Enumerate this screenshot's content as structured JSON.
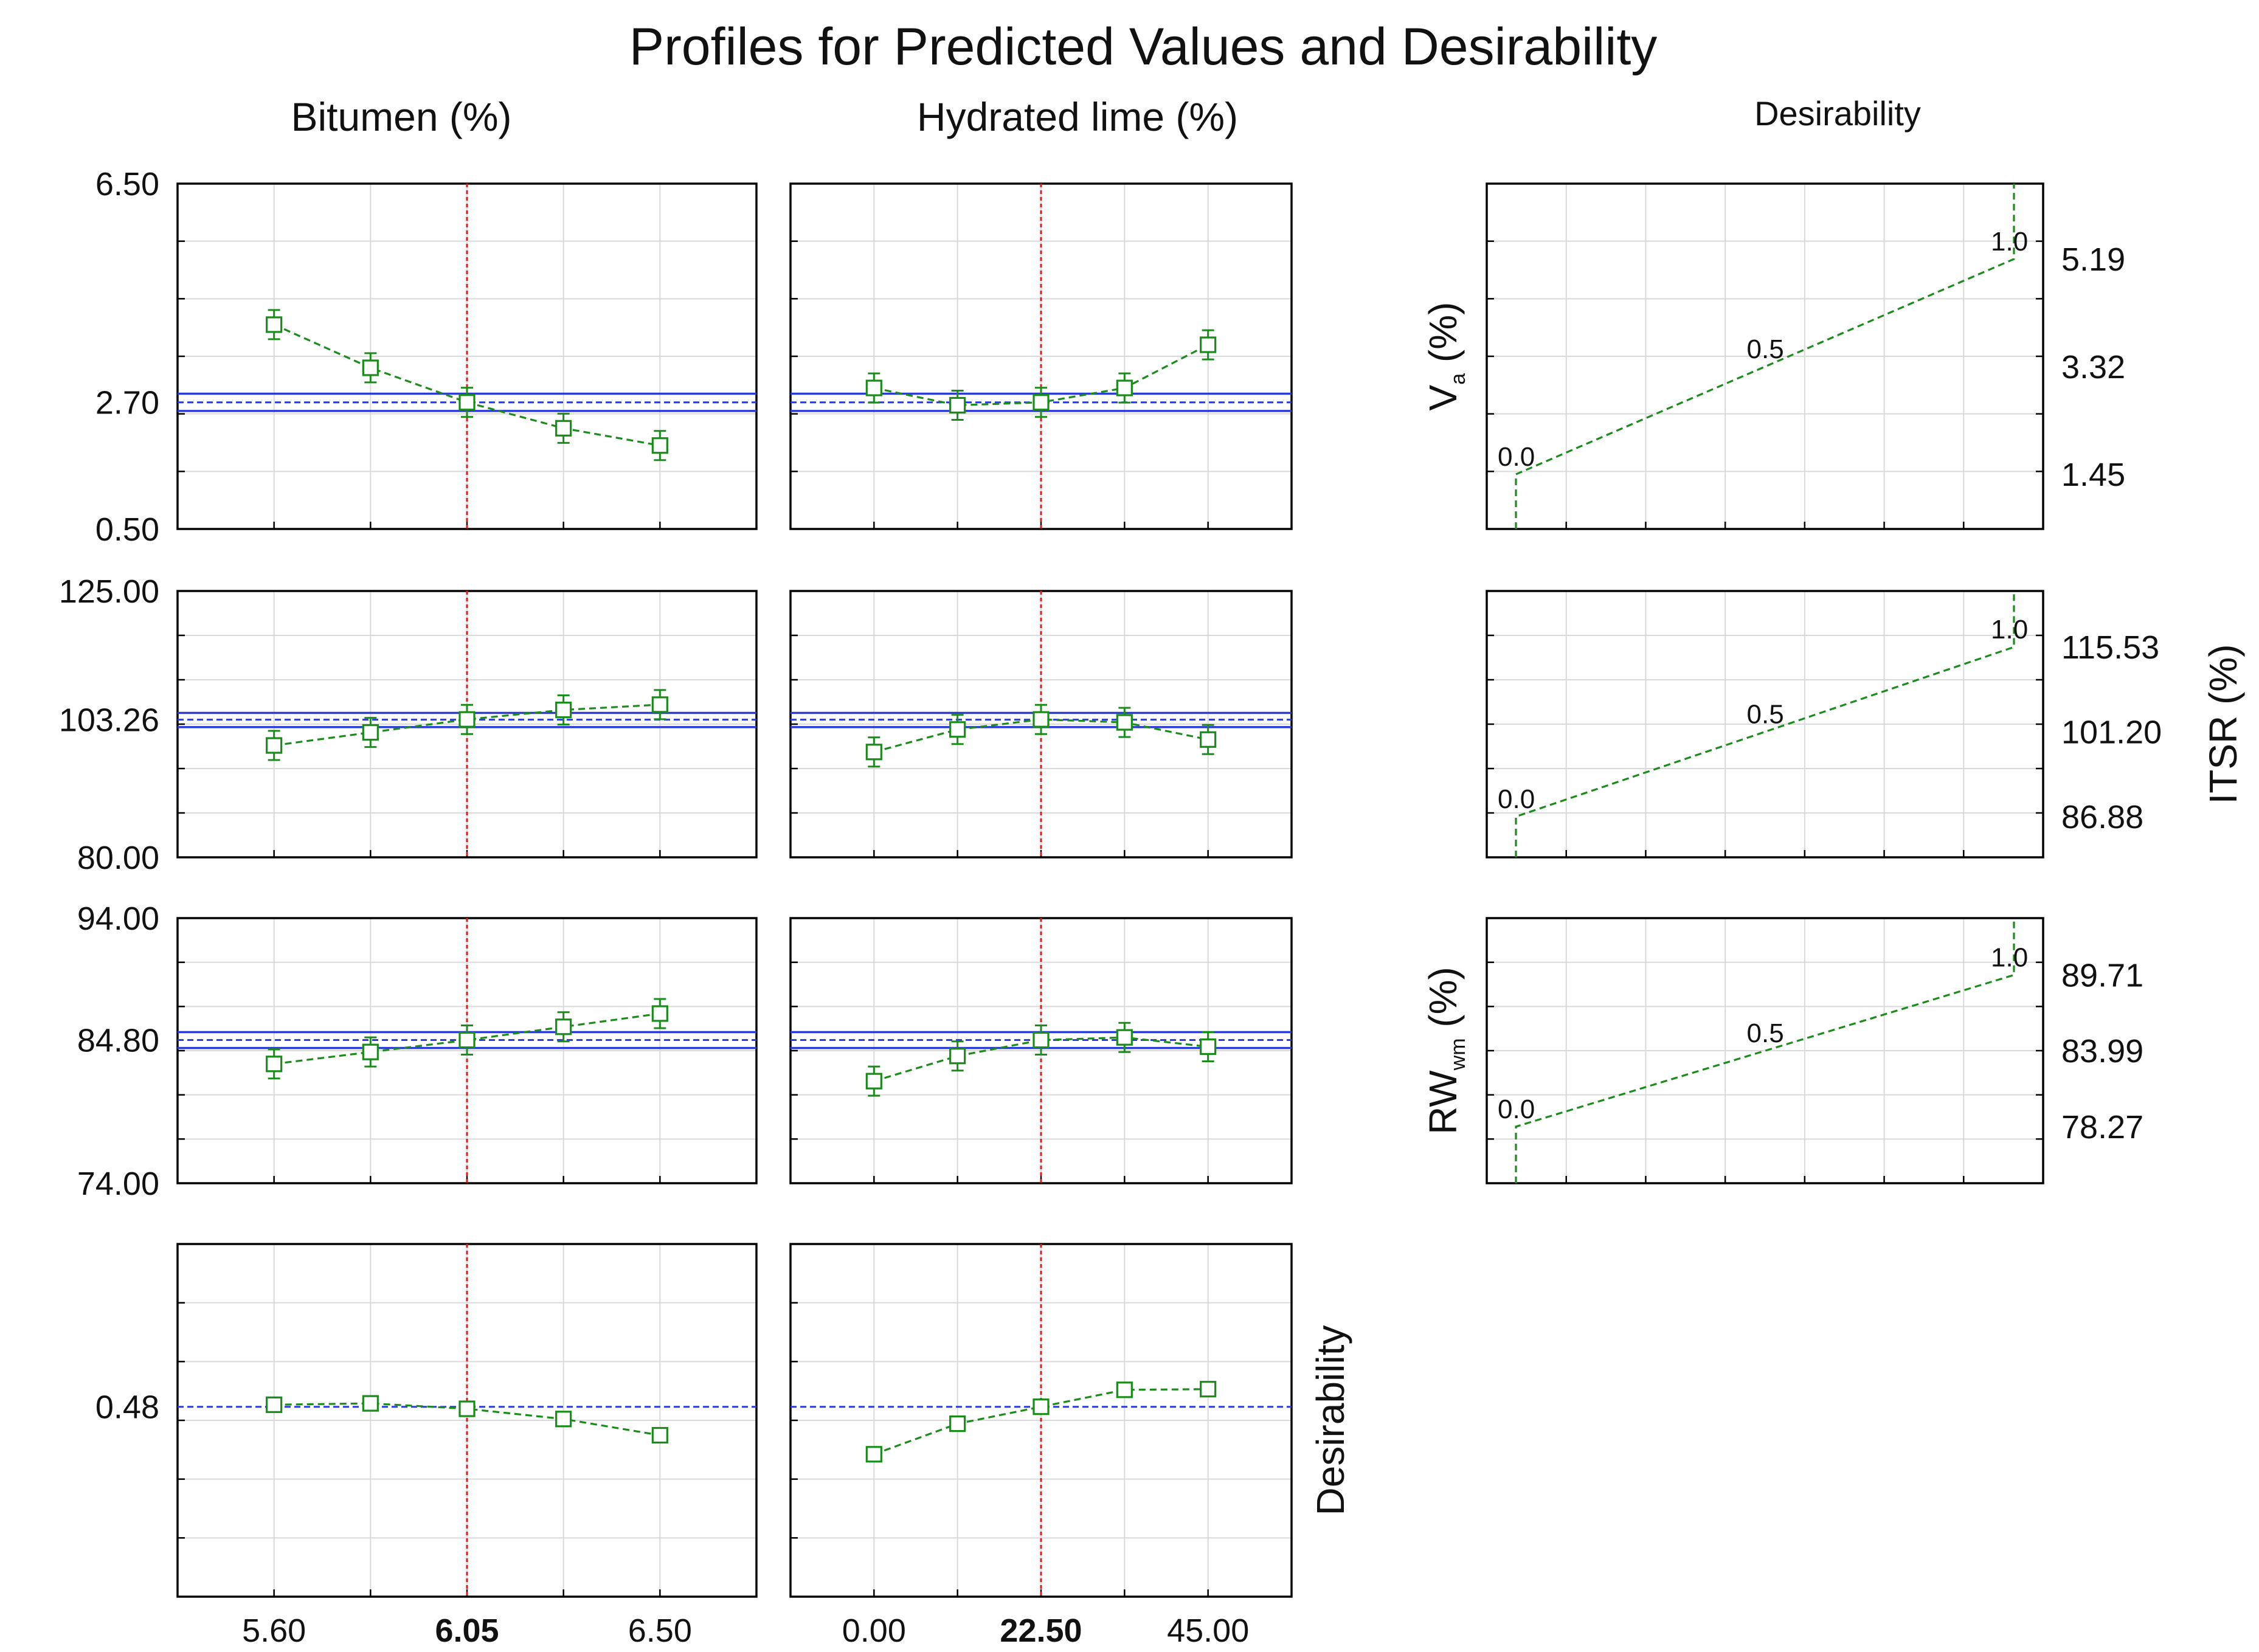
{
  "chart_data": {
    "type": "line",
    "title": "Profiles for Predicted Values and Desirability",
    "factors": [
      {
        "name": "Bitumen (%)",
        "x": [
          5.6,
          5.825,
          6.05,
          6.275,
          6.5
        ],
        "xlim": [
          5.375,
          6.725
        ],
        "ticks": [
          "5.60",
          "6.05",
          "6.50"
        ],
        "tick_values": [
          5.6,
          6.05,
          6.5
        ],
        "current": 6.05,
        "current_label": "6.05"
      },
      {
        "name": "Hydrated lime (%)",
        "x": [
          0,
          11.25,
          22.5,
          33.75,
          45
        ],
        "xlim": [
          -11.25,
          56.25
        ],
        "ticks": [
          "0.00",
          "22.50",
          "45.00"
        ],
        "tick_values": [
          0,
          22.5,
          45
        ],
        "current": 22.5,
        "current_label": "22.50"
      }
    ],
    "responses": [
      {
        "name": "Va (%)",
        "ylabel_main": "V",
        "ylabel_sub": "a",
        "ylabel_tail": " (%)",
        "ylim": [
          0.5,
          6.5
        ],
        "yticks": [
          "6.50",
          "2.70",
          "0.50"
        ],
        "ytick_values": [
          6.5,
          2.7,
          0.5
        ],
        "current": 2.7,
        "ci": [
          2.55,
          2.85
        ],
        "series": [
          {
            "factor": "Bitumen (%)",
            "values": [
              4.05,
              3.3,
              2.7,
              2.25,
              1.95
            ]
          },
          {
            "factor": "Hydrated lime (%)",
            "values": [
              2.95,
              2.65,
              2.7,
              2.95,
              3.7
            ]
          }
        ],
        "desirability": {
          "levels": [
            "5.19",
            "3.32",
            "1.45"
          ],
          "level_values": [
            5.19,
            3.32,
            1.45
          ],
          "ylim": [
            0.5,
            6.5
          ],
          "low": 1.45,
          "high": 5.19,
          "labels": [
            "0.0",
            "0.5",
            "1.0"
          ]
        }
      },
      {
        "name": "ITSR (%)",
        "ylabel_main": "ITSR",
        "ylabel_sub": "",
        "ylabel_tail": " (%)",
        "ylim": [
          80,
          125
        ],
        "yticks": [
          "125.00",
          "103.26",
          "80.00"
        ],
        "ytick_values": [
          125,
          103.26,
          80
        ],
        "current": 103.26,
        "ci": [
          102,
          104.4
        ],
        "series": [
          {
            "factor": "Bitumen (%)",
            "values": [
              98.9,
              101.1,
              103.3,
              104.9,
              105.8
            ]
          },
          {
            "factor": "Hydrated lime (%)",
            "values": [
              97.8,
              101.6,
              103.3,
              102.8,
              99.9
            ]
          }
        ],
        "desirability": {
          "levels": [
            "115.53",
            "101.20",
            "86.88"
          ],
          "level_values": [
            115.53,
            101.2,
            86.88
          ],
          "ylim": [
            80,
            125
          ],
          "low": 86.88,
          "high": 115.53,
          "labels": [
            "0.0",
            "0.5",
            "1.0"
          ]
        }
      },
      {
        "name": "RWwm (%)",
        "ylabel_main": "RW",
        "ylabel_sub": "wm",
        "ylabel_tail": " (%)",
        "ylim": [
          74,
          94
        ],
        "yticks": [
          "94.00",
          "84.80",
          "74.00"
        ],
        "ytick_values": [
          94,
          84.8,
          74
        ],
        "current": 84.8,
        "ci": [
          84.2,
          85.4
        ],
        "series": [
          {
            "factor": "Bitumen (%)",
            "values": [
              83.0,
              83.9,
              84.8,
              85.8,
              86.8
            ]
          },
          {
            "factor": "Hydrated lime (%)",
            "values": [
              81.7,
              83.6,
              84.8,
              85.0,
              84.3
            ]
          }
        ],
        "desirability": {
          "levels": [
            "89.71",
            "83.99",
            "78.27"
          ],
          "level_values": [
            89.71,
            83.99,
            78.27
          ],
          "ylim": [
            74,
            94
          ],
          "low": 78.27,
          "high": 89.71,
          "labels": [
            "0.0",
            "0.5",
            "1.0"
          ]
        }
      }
    ],
    "overall_desirability": {
      "ylabel": "Desirability",
      "ylim": [
        0.2,
        0.72
      ],
      "ytick": "0.48",
      "ytick_value": 0.48,
      "current": 0.48,
      "series": [
        {
          "factor": "Bitumen (%)",
          "values": [
            0.483,
            0.485,
            0.477,
            0.462,
            0.438
          ]
        },
        {
          "factor": "Hydrated lime (%)",
          "values": [
            0.41,
            0.455,
            0.48,
            0.505,
            0.506
          ]
        }
      ]
    },
    "desirability_column_title": "Desirability",
    "colors": {
      "profile": "#1a8c1a",
      "reference": "#2a3bd6",
      "current": "#e01818",
      "grid": "#d9d9d9",
      "frame": "#000000"
    }
  }
}
